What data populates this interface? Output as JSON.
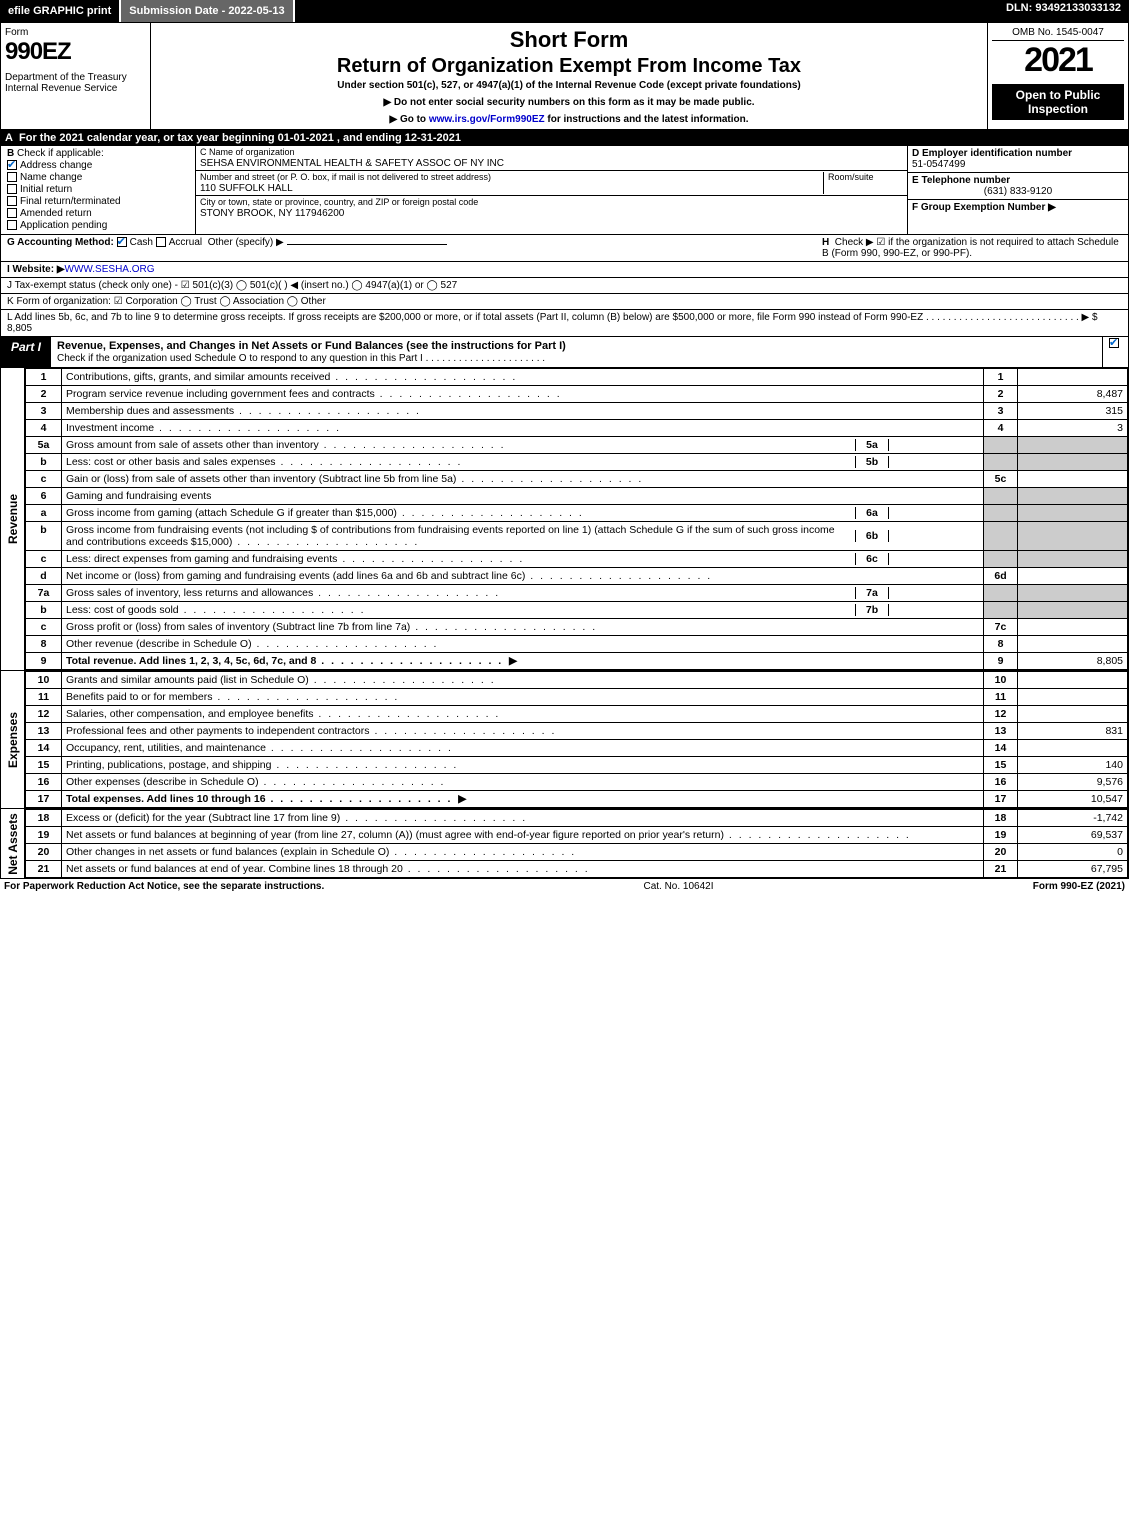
{
  "topbar": {
    "efile": "efile GRAPHIC print",
    "submission": "Submission Date - 2022-05-13",
    "dln": "DLN: 93492133033132"
  },
  "header": {
    "form_label": "Form",
    "form_number": "990EZ",
    "department": "Department of the Treasury",
    "irs": "Internal Revenue Service",
    "short_form": "Short Form",
    "return_title": "Return of Organization Exempt From Income Tax",
    "subtitle": "Under section 501(c), 527, or 4947(a)(1) of the Internal Revenue Code (except private foundations)",
    "do_not_enter": "▶ Do not enter social security numbers on this form as it may be made public.",
    "goto": "▶ Go to www.irs.gov/Form990EZ for instructions and the latest information.",
    "goto_link": "www.irs.gov/Form990EZ",
    "omb": "OMB No. 1545-0047",
    "year": "2021",
    "open_to": "Open to Public Inspection"
  },
  "A": "For the 2021 calendar year, or tax year beginning 01-01-2021 , and ending 12-31-2021",
  "B": {
    "label": "Check if applicable:",
    "opts": [
      "Address change",
      "Name change",
      "Initial return",
      "Final return/terminated",
      "Amended return",
      "Application pending"
    ],
    "checked": [
      true,
      false,
      false,
      false,
      false,
      false
    ]
  },
  "C": {
    "name_lbl": "C Name of organization",
    "name": "SEHSA ENVIRONMENTAL HEALTH & SAFETY ASSOC OF NY INC",
    "addr_lbl": "Number and street (or P. O. box, if mail is not delivered to street address)",
    "room_lbl": "Room/suite",
    "addr": "110 SUFFOLK HALL",
    "city_lbl": "City or town, state or province, country, and ZIP or foreign postal code",
    "city": "STONY BROOK, NY  117946200"
  },
  "D": {
    "lbl": "D Employer identification number",
    "val": "51-0547499"
  },
  "E": {
    "lbl": "E Telephone number",
    "val": "(631) 833-9120"
  },
  "F": {
    "lbl": "F Group Exemption Number  ▶",
    "val": ""
  },
  "G": {
    "lbl": "G Accounting Method:",
    "cash": "Cash",
    "accrual": "Accrual",
    "other": "Other (specify) ▶"
  },
  "H": {
    "text": "Check ▶ ☑ if the organization is not required to attach Schedule B (Form 990, 990-EZ, or 990-PF)."
  },
  "I": {
    "lbl": "I Website: ▶",
    "val": "WWW.SESHA.ORG"
  },
  "J": {
    "text": "J Tax-exempt status (check only one) - ☑ 501(c)(3)  ◯ 501(c)(  ) ◀ (insert no.)  ◯ 4947(a)(1) or  ◯ 527"
  },
  "K": {
    "text": "K Form of organization:  ☑ Corporation  ◯ Trust  ◯ Association  ◯ Other"
  },
  "L": {
    "text": "L Add lines 5b, 6c, and 7b to line 9 to determine gross receipts. If gross receipts are $200,000 or more, or if total assets (Part II, column (B) below) are $500,000 or more, file Form 990 instead of Form 990-EZ . . . . . . . . . . . . . . . . . . . . . . . . . . . .  ▶ $ 8,805"
  },
  "part1": {
    "tab": "Part I",
    "title": "Revenue, Expenses, and Changes in Net Assets or Fund Balances (see the instructions for Part I)",
    "check_line": "Check if the organization used Schedule O to respond to any question in this Part I . . . . . . . . . . . . . . . . . . . . . ."
  },
  "revenue": {
    "label": "Revenue",
    "rows": [
      {
        "n": "1",
        "d": "Contributions, gifts, grants, and similar amounts received",
        "box": "1",
        "amt": ""
      },
      {
        "n": "2",
        "d": "Program service revenue including government fees and contracts",
        "box": "2",
        "amt": "8,487"
      },
      {
        "n": "3",
        "d": "Membership dues and assessments",
        "box": "3",
        "amt": "315"
      },
      {
        "n": "4",
        "d": "Investment income",
        "box": "4",
        "amt": "3"
      },
      {
        "n": "5a",
        "d": "Gross amount from sale of assets other than inventory",
        "sub": "5a",
        "subamt": ""
      },
      {
        "n": "b",
        "d": "Less: cost or other basis and sales expenses",
        "sub": "5b",
        "subamt": ""
      },
      {
        "n": "c",
        "d": "Gain or (loss) from sale of assets other than inventory (Subtract line 5b from line 5a)",
        "box": "5c",
        "amt": ""
      },
      {
        "n": "6",
        "d": "Gaming and fundraising events"
      },
      {
        "n": "a",
        "d": "Gross income from gaming (attach Schedule G if greater than $15,000)",
        "sub": "6a",
        "subamt": ""
      },
      {
        "n": "b",
        "d": "Gross income from fundraising events (not including $                    of contributions from fundraising events reported on line 1) (attach Schedule G if the sum of such gross income and contributions exceeds $15,000)",
        "sub": "6b",
        "subamt": ""
      },
      {
        "n": "c",
        "d": "Less: direct expenses from gaming and fundraising events",
        "sub": "6c",
        "subamt": ""
      },
      {
        "n": "d",
        "d": "Net income or (loss) from gaming and fundraising events (add lines 6a and 6b and subtract line 6c)",
        "box": "6d",
        "amt": ""
      },
      {
        "n": "7a",
        "d": "Gross sales of inventory, less returns and allowances",
        "sub": "7a",
        "subamt": ""
      },
      {
        "n": "b",
        "d": "Less: cost of goods sold",
        "sub": "7b",
        "subamt": ""
      },
      {
        "n": "c",
        "d": "Gross profit or (loss) from sales of inventory (Subtract line 7b from line 7a)",
        "box": "7c",
        "amt": ""
      },
      {
        "n": "8",
        "d": "Other revenue (describe in Schedule O)",
        "box": "8",
        "amt": ""
      },
      {
        "n": "9",
        "d": "Total revenue. Add lines 1, 2, 3, 4, 5c, 6d, 7c, and 8",
        "box": "9",
        "amt": "8,805",
        "bold": true,
        "arrow": true
      }
    ]
  },
  "expenses": {
    "label": "Expenses",
    "rows": [
      {
        "n": "10",
        "d": "Grants and similar amounts paid (list in Schedule O)",
        "box": "10",
        "amt": ""
      },
      {
        "n": "11",
        "d": "Benefits paid to or for members",
        "box": "11",
        "amt": ""
      },
      {
        "n": "12",
        "d": "Salaries, other compensation, and employee benefits",
        "box": "12",
        "amt": ""
      },
      {
        "n": "13",
        "d": "Professional fees and other payments to independent contractors",
        "box": "13",
        "amt": "831"
      },
      {
        "n": "14",
        "d": "Occupancy, rent, utilities, and maintenance",
        "box": "14",
        "amt": ""
      },
      {
        "n": "15",
        "d": "Printing, publications, postage, and shipping",
        "box": "15",
        "amt": "140"
      },
      {
        "n": "16",
        "d": "Other expenses (describe in Schedule O)",
        "box": "16",
        "amt": "9,576"
      },
      {
        "n": "17",
        "d": "Total expenses. Add lines 10 through 16",
        "box": "17",
        "amt": "10,547",
        "bold": true,
        "arrow": true
      }
    ]
  },
  "netassets": {
    "label": "Net Assets",
    "rows": [
      {
        "n": "18",
        "d": "Excess or (deficit) for the year (Subtract line 17 from line 9)",
        "box": "18",
        "amt": "-1,742"
      },
      {
        "n": "19",
        "d": "Net assets or fund balances at beginning of year (from line 27, column (A)) (must agree with end-of-year figure reported on prior year's return)",
        "box": "19",
        "amt": "69,537"
      },
      {
        "n": "20",
        "d": "Other changes in net assets or fund balances (explain in Schedule O)",
        "box": "20",
        "amt": "0"
      },
      {
        "n": "21",
        "d": "Net assets or fund balances at end of year. Combine lines 18 through 20",
        "box": "21",
        "amt": "67,795"
      }
    ]
  },
  "footer": {
    "left": "For Paperwork Reduction Act Notice, see the separate instructions.",
    "mid": "Cat. No. 10642I",
    "right": "Form 990-EZ (2021)"
  }
}
